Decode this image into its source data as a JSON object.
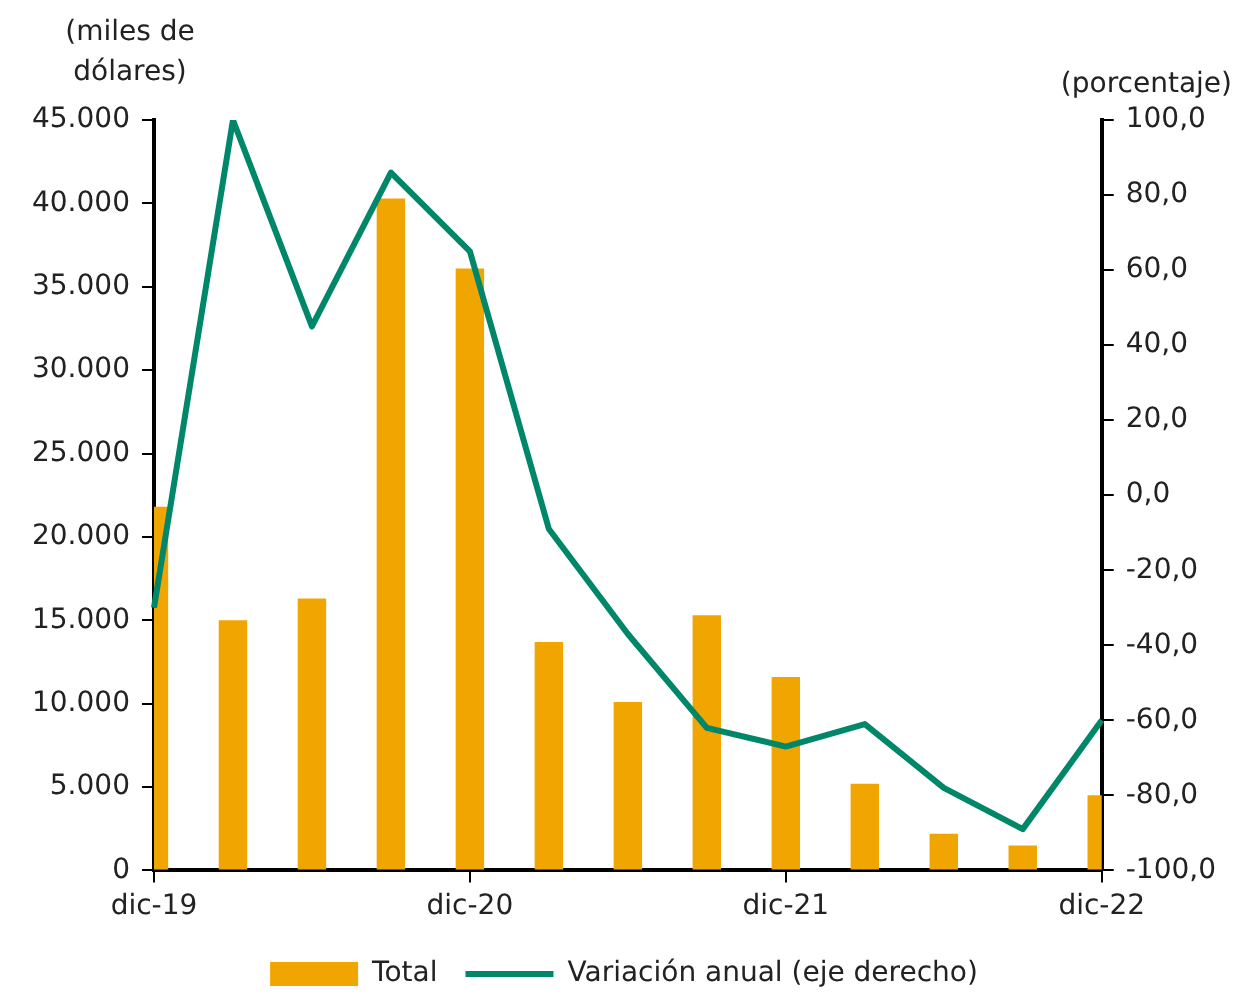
{
  "chart_data": {
    "type": "bar",
    "ylabel": "(miles de dólares)",
    "y2label": "(porcentaje)",
    "categories": [
      "dic-19",
      null,
      null,
      null,
      "dic-20",
      null,
      null,
      null,
      "dic-21",
      null,
      null,
      null,
      "dic-22"
    ],
    "series": [
      {
        "name": "Total",
        "color": "#f0a500",
        "values": [
          21800,
          15000,
          16300,
          40300,
          36100,
          13700,
          10100,
          15300,
          11600,
          5200,
          2200,
          1500,
          4500
        ]
      },
      {
        "name": "Variación anual (eje derecho)",
        "type": "line",
        "axis": "y2",
        "color": "#00876a",
        "values": [
          -30,
          100,
          45,
          86,
          65,
          -9,
          -37,
          -62,
          -67,
          -61,
          -78,
          -89,
          -60
        ]
      }
    ],
    "ylim": [
      0,
      45000
    ],
    "yticks": [
      {
        "value": 0,
        "label": "0"
      },
      {
        "value": 5000,
        "label": "5.000"
      },
      {
        "value": 10000,
        "label": "10.000"
      },
      {
        "value": 15000,
        "label": "15.000"
      },
      {
        "value": 20000,
        "label": "20.000"
      },
      {
        "value": 25000,
        "label": "25.000"
      },
      {
        "value": 30000,
        "label": "30.000"
      },
      {
        "value": 35000,
        "label": "35.000"
      },
      {
        "value": 40000,
        "label": "40.000"
      },
      {
        "value": 45000,
        "label": "45.000"
      }
    ],
    "y2lim": [
      -100,
      100
    ],
    "y2ticks": [
      {
        "value": -100,
        "label": "-100,0"
      },
      {
        "value": -80,
        "label": "-80,0"
      },
      {
        "value": -60,
        "label": "-60,0"
      },
      {
        "value": -40,
        "label": "-40,0"
      },
      {
        "value": -20,
        "label": "-20,0"
      },
      {
        "value": 0,
        "label": "0,0"
      },
      {
        "value": 20,
        "label": "20,0"
      },
      {
        "value": 40,
        "label": "40,0"
      },
      {
        "value": 60,
        "label": "60,0"
      },
      {
        "value": 80,
        "label": "80,0"
      },
      {
        "value": 100,
        "label": "100,0"
      }
    ],
    "grid": false,
    "legend": "bottom"
  }
}
